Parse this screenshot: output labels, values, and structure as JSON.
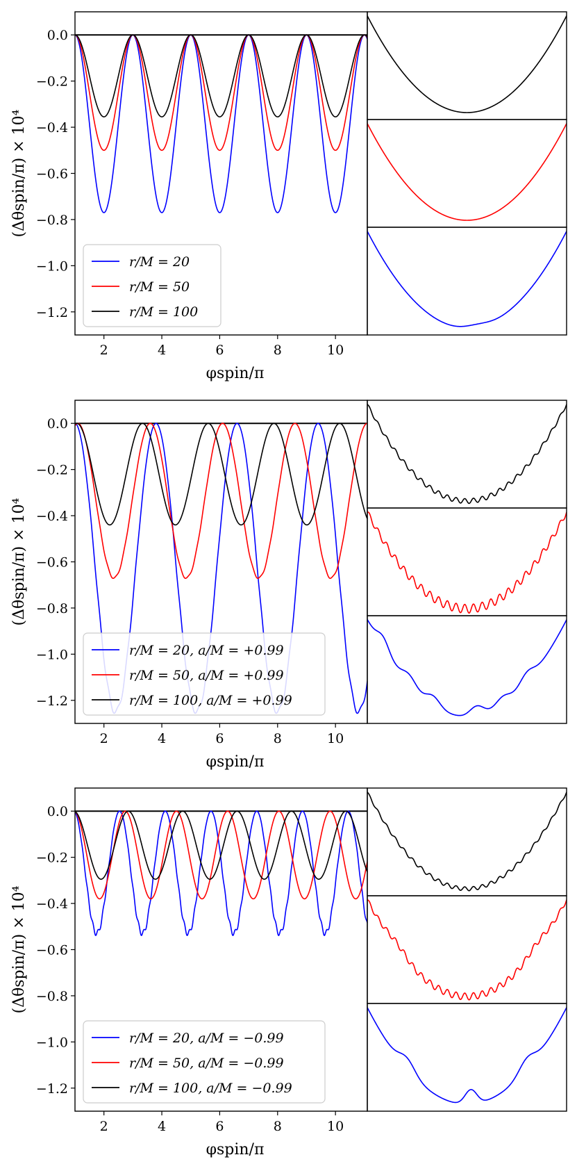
{
  "figure": {
    "x_axis_label": "φspin/π",
    "y_axis_label": "(Δθspin/π) × 10⁴"
  },
  "chart_data": [
    {
      "type": "line",
      "panel": "top",
      "xlabel": "φspin/π",
      "ylabel": "(Δθspin/π) × 10⁴",
      "xlim": [
        1,
        11.1
      ],
      "ylim": [
        -1.3,
        0.1
      ],
      "x_ticks": [
        "2",
        "4",
        "6",
        "8",
        "10"
      ],
      "y_ticks": [
        "0.0",
        "−0.2",
        "−0.4",
        "−0.6",
        "−0.8",
        "−1.0",
        "−1.2"
      ],
      "legend_position": "lower-left",
      "series": [
        {
          "name": "r/M = 20",
          "color": "#0000ff",
          "minimum": -0.77,
          "period": 2.0,
          "first_min_x": 2.0,
          "ripple": 0.0,
          "legend": "r/M = 20"
        },
        {
          "name": "r/M = 50",
          "color": "#ff0000",
          "minimum": -0.5,
          "period": 2.0,
          "first_min_x": 2.0,
          "ripple": 0.0,
          "legend": "r/M = 50"
        },
        {
          "name": "r/M = 100",
          "color": "#000000",
          "minimum": -0.355,
          "period": 2.0,
          "first_min_x": 2.0,
          "ripple": 0.0,
          "legend": "r/M = 100"
        }
      ],
      "zoom_insets": [
        {
          "series": "r/M = 100",
          "color": "#000000",
          "ripple": 0.0,
          "bumps": []
        },
        {
          "series": "r/M = 50",
          "color": "#ff0000",
          "ripple": 0.0,
          "bumps": []
        },
        {
          "series": "r/M = 20",
          "color": "#0000ff",
          "ripple": 0.0,
          "bumps": [
            [
              0.55,
              0.03,
              0.06
            ]
          ]
        }
      ]
    },
    {
      "type": "line",
      "panel": "middle",
      "xlabel": "φspin/π",
      "ylabel": "(Δθspin/π) × 10⁴",
      "xlim": [
        1,
        11.1
      ],
      "ylim": [
        -1.3,
        0.1
      ],
      "x_ticks": [
        "2",
        "4",
        "6",
        "8",
        "10"
      ],
      "y_ticks": [
        "0.0",
        "−0.2",
        "−0.4",
        "−0.6",
        "−0.8",
        "−1.0",
        "−1.2"
      ],
      "legend_position": "lower-left",
      "series": [
        {
          "name": "r/M = 20, a/M = +0.99",
          "color": "#0000ff",
          "minimum": -1.25,
          "period": 2.8,
          "first_min_x": 2.4,
          "ripple": 0.012,
          "legend": "r/M = 20, a/M = +0.99"
        },
        {
          "name": "r/M = 50, a/M = +0.99",
          "color": "#ff0000",
          "minimum": -0.67,
          "period": 2.5,
          "first_min_x": 2.35,
          "ripple": 0.004,
          "legend": "r/M = 50, a/M = +0.99"
        },
        {
          "name": "r/M = 100, a/M = +0.99",
          "color": "#000000",
          "minimum": -0.44,
          "period": 2.27,
          "first_min_x": 2.2,
          "ripple": 0.0,
          "legend": "r/M = 100, a/M = +0.99"
        }
      ],
      "zoom_insets": [
        {
          "series": "r/M = 100, a/M = +0.99",
          "color": "#000000",
          "ripple": 0.025,
          "bumps": []
        },
        {
          "series": "r/M = 50, a/M = +0.99",
          "color": "#ff0000",
          "ripple": 0.045,
          "bumps": []
        },
        {
          "series": "r/M = 20, a/M = +0.99",
          "color": "#0000ff",
          "ripple": 0.0,
          "bumps": [
            [
              0.08,
              0.12,
              0.03
            ],
            [
              0.21,
              0.1,
              0.035
            ],
            [
              0.33,
              0.1,
              0.035
            ],
            [
              0.55,
              0.1,
              0.035
            ],
            [
              0.68,
              0.08,
              0.035
            ],
            [
              0.8,
              0.1,
              0.035
            ]
          ]
        }
      ]
    },
    {
      "type": "line",
      "panel": "bottom",
      "xlabel": "φspin/π",
      "ylabel": "(Δθspin/π) × 10⁴",
      "xlim": [
        1,
        11.1
      ],
      "ylim": [
        -1.3,
        0.1
      ],
      "x_ticks": [
        "2",
        "4",
        "6",
        "8",
        "10"
      ],
      "y_ticks": [
        "0.0",
        "−0.2",
        "−0.4",
        "−0.6",
        "−0.8",
        "−1.0",
        "−1.2"
      ],
      "legend_position": "lower-left",
      "series": [
        {
          "name": "r/M = 20, a/M = −0.99",
          "color": "#0000ff",
          "minimum": -0.53,
          "period": 1.58,
          "first_min_x": 1.75,
          "ripple": 0.012,
          "legend": "r/M = 20, a/M = −0.99"
        },
        {
          "name": "r/M = 50, a/M = −0.99",
          "color": "#ff0000",
          "minimum": -0.38,
          "period": 1.77,
          "first_min_x": 1.85,
          "ripple": 0.0,
          "legend": "r/M = 50, a/M = −0.99"
        },
        {
          "name": "r/M = 100, a/M = −0.99",
          "color": "#000000",
          "minimum": -0.295,
          "period": 1.88,
          "first_min_x": 1.9,
          "ripple": 0.0,
          "legend": "r/M = 100, a/M = −0.99"
        }
      ],
      "zoom_insets": [
        {
          "series": "r/M = 100, a/M = −0.99",
          "color": "#000000",
          "ripple": 0.02,
          "bumps": []
        },
        {
          "series": "r/M = 50, a/M = −0.99",
          "color": "#ff0000",
          "ripple": 0.035,
          "bumps": [
            [
              0.15,
              0.06,
              0.05
            ],
            [
              0.85,
              0.06,
              0.05
            ]
          ]
        },
        {
          "series": "r/M = 20, a/M = −0.99",
          "color": "#0000ff",
          "ripple": 0.0,
          "bumps": [
            [
              0.2,
              0.12,
              0.04
            ],
            [
              0.52,
              0.15,
              0.03
            ],
            [
              0.8,
              0.12,
              0.04
            ]
          ]
        }
      ]
    }
  ]
}
